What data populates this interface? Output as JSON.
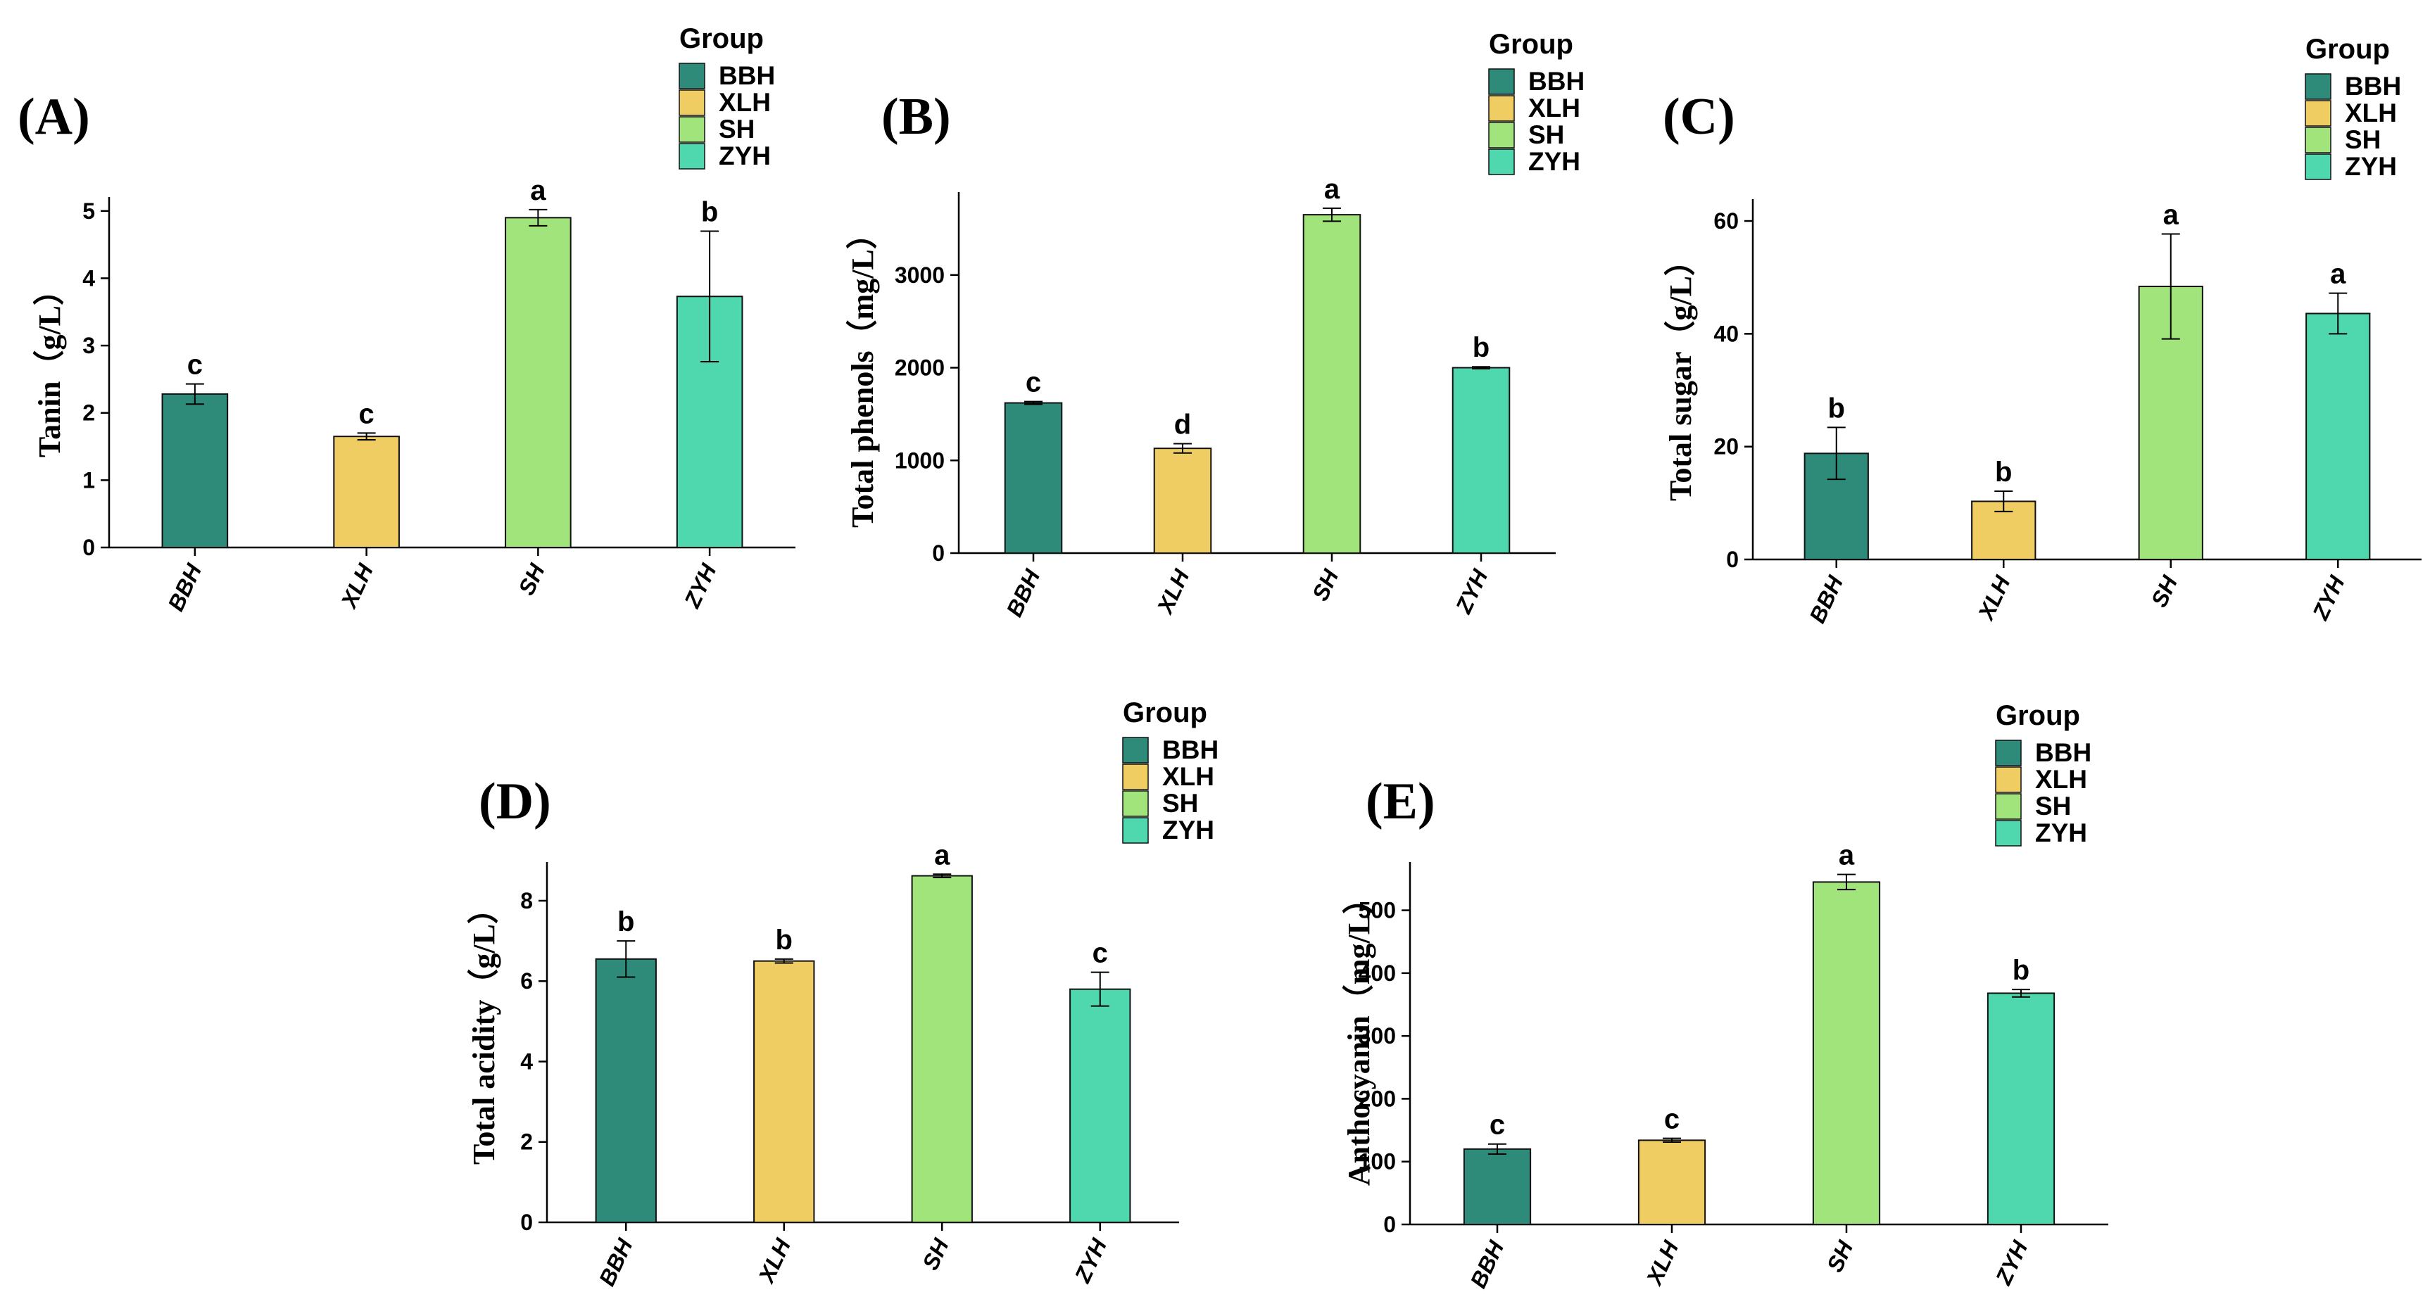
{
  "legend_title": "Group",
  "groups": [
    "BBH",
    "XLH",
    "SH",
    "ZYH"
  ],
  "colors": {
    "BBH": "#2e8b7a",
    "XLH": "#efcd62",
    "SH": "#a2e47c",
    "ZYH": "#4fd8ad"
  },
  "chart_data": [
    {
      "type": "bar",
      "panel": "(A)",
      "ylabel": "Tanin（g/L）",
      "categories": [
        "BBH",
        "XLH",
        "SH",
        "ZYH"
      ],
      "values": [
        2.28,
        1.65,
        4.9,
        3.73
      ],
      "errors": [
        0.15,
        0.05,
        0.12,
        0.97
      ],
      "letters": [
        "c",
        "c",
        "a",
        "b"
      ],
      "ylim": [
        0,
        5.05
      ],
      "yticks": [
        0,
        1,
        2,
        3,
        4,
        5
      ]
    },
    {
      "type": "bar",
      "panel": "(B)",
      "ylabel": "Total phenols（mg/L）",
      "categories": [
        "BBH",
        "XLH",
        "SH",
        "ZYH"
      ],
      "values": [
        1620,
        1130,
        3650,
        2000
      ],
      "errors": [
        15,
        50,
        70,
        10
      ],
      "letters": [
        "c",
        "d",
        "a",
        "b"
      ],
      "ylim": [
        0,
        3780
      ],
      "yticks": [
        0,
        1000,
        2000,
        3000
      ]
    },
    {
      "type": "bar",
      "panel": "(C)",
      "ylabel": "Total sugar（g/L）",
      "categories": [
        "BBH",
        "XLH",
        "SH",
        "ZYH"
      ],
      "values": [
        18.8,
        10.3,
        48.4,
        43.6
      ],
      "errors": [
        4.6,
        1.8,
        9.3,
        3.6
      ],
      "letters": [
        "b",
        "b",
        "a",
        "a"
      ],
      "ylim": [
        0,
        62
      ],
      "yticks": [
        0,
        20,
        40,
        60
      ]
    },
    {
      "type": "bar",
      "panel": "(D)",
      "ylabel": "Total acidity（g/L）",
      "categories": [
        "BBH",
        "XLH",
        "SH",
        "ZYH"
      ],
      "values": [
        6.55,
        6.5,
        8.62,
        5.8
      ],
      "errors": [
        0.45,
        0.05,
        0.04,
        0.42
      ],
      "letters": [
        "b",
        "b",
        "a",
        "c"
      ],
      "ylim": [
        0,
        8.7
      ],
      "yticks": [
        0,
        2,
        4,
        6,
        8
      ]
    },
    {
      "type": "bar",
      "panel": "(E)",
      "ylabel": "Anthocyanin（mg/L）",
      "categories": [
        "BBH",
        "XLH",
        "SH",
        "ZYH"
      ],
      "values": [
        120,
        134,
        545,
        368
      ],
      "errors": [
        8,
        3,
        12,
        6
      ],
      "letters": [
        "c",
        "c",
        "a",
        "b"
      ],
      "ylim": [
        0,
        560
      ],
      "yticks": [
        0,
        100,
        200,
        300,
        400,
        500
      ]
    }
  ]
}
